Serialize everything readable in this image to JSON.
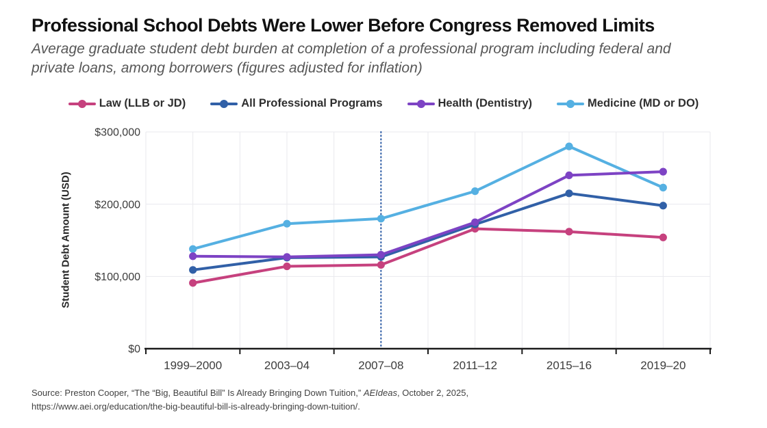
{
  "header": {
    "title": "Professional School Debts Were Lower Before Congress Removed Limits",
    "subtitle": "Average graduate student debt burden at completion of a professional program including federal and private loans, among borrowers (figures adjusted for inflation)"
  },
  "chart_data": {
    "type": "line",
    "title": "Professional School Debts Were Lower Before Congress Removed Limits",
    "categories": [
      "1999–2000",
      "2003–04",
      "2007–08",
      "2011–12",
      "2015–16",
      "2019–20"
    ],
    "series": [
      {
        "name": "Law (LLB or JD)",
        "color": "#c6417e",
        "values": [
          91000,
          114000,
          116000,
          166000,
          162000,
          154000
        ]
      },
      {
        "name": "All Professional Programs",
        "color": "#3160a7",
        "values": [
          109000,
          126000,
          127000,
          172000,
          215000,
          198000
        ]
      },
      {
        "name": "Health (Dentistry)",
        "color": "#7d43c4",
        "values": [
          128000,
          127000,
          130000,
          175000,
          240000,
          245000
        ]
      },
      {
        "name": "Medicine (MD or DO)",
        "color": "#55b0e2",
        "values": [
          138000,
          173000,
          180000,
          218000,
          280000,
          223000
        ]
      }
    ],
    "xlabel": "",
    "ylabel": "Student Debt Amount (USD)",
    "ylim": [
      0,
      300000
    ],
    "yticks": [
      0,
      100000,
      200000,
      300000
    ],
    "ytick_labels": [
      "$0",
      "$100,000",
      "$200,000",
      "$300,000"
    ],
    "grid": true,
    "legend_position": "top",
    "reference_line": {
      "category": "2007–08",
      "style": "dotted",
      "color": "#2d5da6"
    },
    "colors": {
      "grid": "#e9e9ee",
      "axis": "#1b1b1b",
      "tick_text": "#3c3c3c"
    }
  },
  "source": {
    "prefix": "Source: Preston Cooper, “The “Big, Beautiful Bill” Is Already Bringing Down Tuition,” ",
    "publication": "AEIdeas",
    "suffix": ", October 2, 2025,",
    "line2": "https://www.aei.org/education/the-big-beautiful-bill-is-already-bringing-down-tuition/."
  }
}
